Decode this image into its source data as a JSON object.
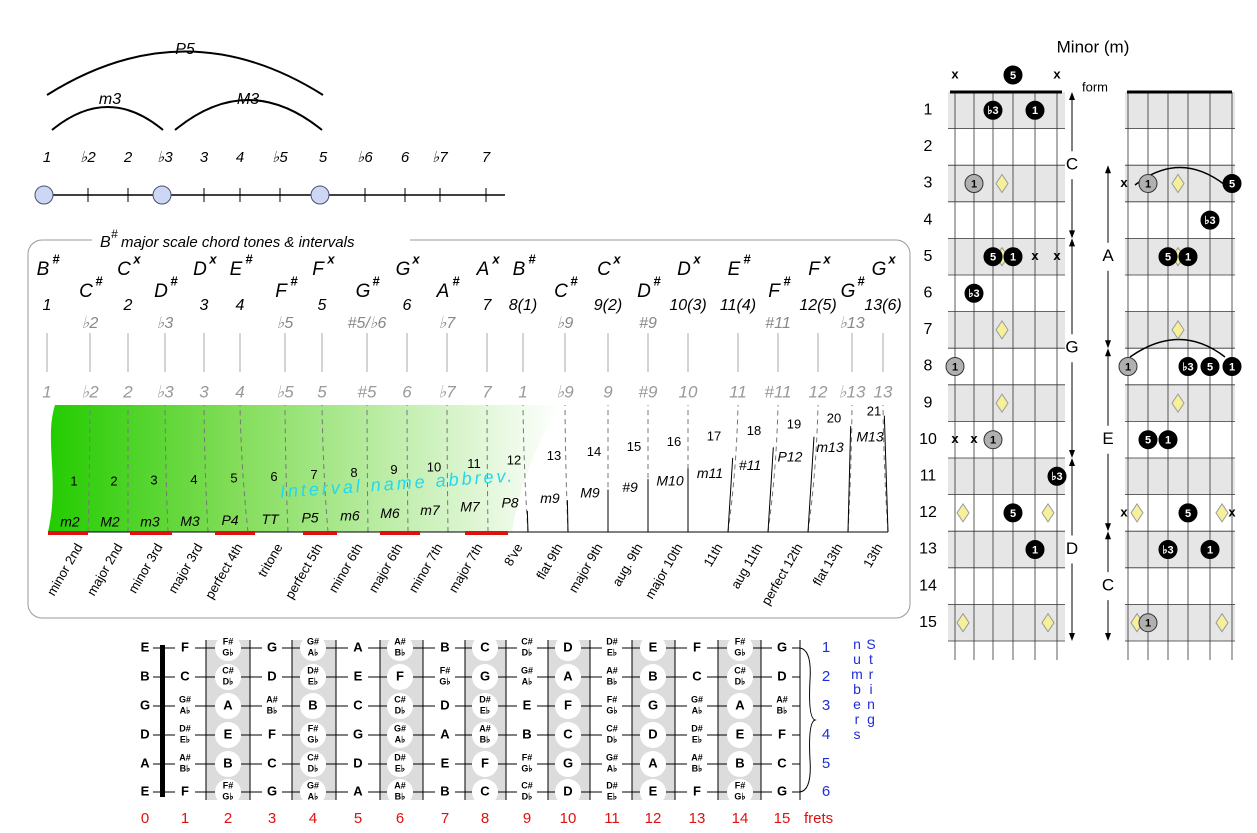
{
  "top_intervals": {
    "arcs": [
      "P5",
      "m3",
      "M3"
    ],
    "degrees": [
      "1",
      "♭2",
      "2",
      "♭3",
      "3",
      "4",
      "♭5",
      "5",
      "♭6",
      "6",
      "♭7",
      "7"
    ]
  },
  "scale_box": {
    "title": {
      "note": "B",
      "accidental": "#",
      "text": "major scale chord tones & intervals"
    },
    "columns": [
      {
        "note": "B",
        "accidental": "#",
        "degree": "1",
        "color": "#000000"
      },
      {
        "note": "C",
        "accidental": "#",
        "degree": "♭2",
        "color": "#888888"
      },
      {
        "note": "C",
        "accidental": "x",
        "degree": "2",
        "color": "#000000"
      },
      {
        "note": "D",
        "accidental": "#",
        "degree": "♭3",
        "color": "#888888"
      },
      {
        "note": "D",
        "accidental": "x",
        "degree": "3",
        "color": "#000000"
      },
      {
        "note": "E",
        "accidental": "#",
        "degree": "4",
        "color": "#000000"
      },
      {
        "note": "F",
        "accidental": "#",
        "degree": "♭5",
        "color": "#888888"
      },
      {
        "note": "F",
        "accidental": "x",
        "degree": "5",
        "color": "#000000"
      },
      {
        "note": "G",
        "accidental": "#",
        "degree": "#5/♭6",
        "color": "#888888"
      },
      {
        "note": "G",
        "accidental": "x",
        "degree": "6",
        "color": "#000000"
      },
      {
        "note": "A",
        "accidental": "#",
        "degree": "♭7",
        "color": "#888888"
      },
      {
        "note": "A",
        "accidental": "x",
        "degree": "7",
        "color": "#000000"
      },
      {
        "note": "B",
        "accidental": "#",
        "degree": "8(1)",
        "color": "#000000"
      },
      {
        "note": "C",
        "accidental": "#",
        "degree": "♭9",
        "color": "#888888"
      },
      {
        "note": "C",
        "accidental": "x",
        "degree": "9(2)",
        "color": "#000000"
      },
      {
        "note": "D",
        "accidental": "#",
        "degree": "#9",
        "color": "#888888"
      },
      {
        "note": "D",
        "accidental": "x",
        "degree": "10(3)",
        "color": "#000000"
      },
      {
        "note": "E",
        "accidental": "#",
        "degree": "11(4)",
        "color": "#000000"
      },
      {
        "note": "F",
        "accidental": "#",
        "degree": "#11",
        "color": "#888888"
      },
      {
        "note": "F",
        "accidental": "x",
        "degree": "12(5)",
        "color": "#000000"
      },
      {
        "note": "G",
        "accidental": "#",
        "degree": "♭13",
        "color": "#888888"
      },
      {
        "note": "G",
        "accidental": "x",
        "degree": "13(6)",
        "color": "#000000"
      }
    ],
    "degrees_row": [
      "1",
      "♭2",
      "2",
      "♭3",
      "3",
      "4",
      "♭5",
      "5",
      "#5",
      "6",
      "♭7",
      "7",
      "1",
      "♭9",
      "9",
      "#9",
      "10",
      "11",
      "#11",
      "12",
      "♭13",
      "13"
    ],
    "interval_caption": "Interval name abbrev.",
    "intervals": [
      {
        "number": 1,
        "abbrev": "m2",
        "name": "minor 2nd"
      },
      {
        "number": 2,
        "abbrev": "M2",
        "name": "major 2nd"
      },
      {
        "number": 3,
        "abbrev": "m3",
        "name": "minor 3rd"
      },
      {
        "number": 4,
        "abbrev": "M3",
        "name": "major 3rd"
      },
      {
        "number": 5,
        "abbrev": "P4",
        "name": "perfect 4th"
      },
      {
        "number": 6,
        "abbrev": "TT",
        "name": "tritone"
      },
      {
        "number": 7,
        "abbrev": "P5",
        "name": "perfect 5th"
      },
      {
        "number": 8,
        "abbrev": "m6",
        "name": "minor 6th"
      },
      {
        "number": 9,
        "abbrev": "M6",
        "name": "major 6th"
      },
      {
        "number": 10,
        "abbrev": "m7",
        "name": "minor 7th"
      },
      {
        "number": 11,
        "abbrev": "M7",
        "name": "major 7th"
      },
      {
        "number": 12,
        "abbrev": "P8",
        "name": "8've"
      },
      {
        "number": 13,
        "abbrev": "m9",
        "name": "flat 9th"
      },
      {
        "number": 14,
        "abbrev": "M9",
        "name": "major 9th"
      },
      {
        "number": 15,
        "abbrev": "#9",
        "name": "aug. 9th"
      },
      {
        "number": 16,
        "abbrev": "M10",
        "name": "major 10th"
      },
      {
        "number": 17,
        "abbrev": "m11",
        "name": "11th"
      },
      {
        "number": 18,
        "abbrev": "#11",
        "name": "aug 11th"
      },
      {
        "number": 19,
        "abbrev": "P12",
        "name": "perfect 12th"
      },
      {
        "number": 20,
        "abbrev": "m13",
        "name": "flat 13th"
      },
      {
        "number": 21,
        "abbrev": "M13",
        "name": "13th"
      }
    ]
  },
  "fretboard": {
    "string_names": [
      "E",
      "B",
      "G",
      "D",
      "A",
      "E"
    ],
    "notes": [
      [
        "F",
        [
          "F#",
          "G♭"
        ],
        "G",
        [
          "G#",
          "A♭"
        ],
        "A",
        [
          "A#",
          "B♭"
        ],
        "B",
        "C",
        [
          "C#",
          "D♭"
        ],
        "D",
        [
          "D#",
          "E♭"
        ],
        "E",
        "F",
        [
          "F#",
          "G♭"
        ],
        "G"
      ],
      [
        "C",
        [
          "C#",
          "D♭"
        ],
        "D",
        [
          "D#",
          "E♭"
        ],
        "E",
        "F",
        [
          "F#",
          "G♭"
        ],
        "G",
        [
          "G#",
          "A♭"
        ],
        "A",
        [
          "A#",
          "B♭"
        ],
        "B",
        "C",
        [
          "C#",
          "D♭"
        ],
        "D"
      ],
      [
        [
          "G#",
          "A♭"
        ],
        "A",
        [
          "A#",
          "B♭"
        ],
        "B",
        "C",
        [
          "C#",
          "D♭"
        ],
        "D",
        [
          "D#",
          "E♭"
        ],
        "E",
        "F",
        [
          "F#",
          "G♭"
        ],
        "G",
        [
          "G#",
          "A♭"
        ],
        "A",
        [
          "A#",
          "B♭"
        ]
      ],
      [
        [
          "D#",
          "E♭"
        ],
        "E",
        "F",
        [
          "F#",
          "G♭"
        ],
        "G",
        [
          "G#",
          "A♭"
        ],
        "A",
        [
          "A#",
          "B♭"
        ],
        "B",
        "C",
        [
          "C#",
          "D♭"
        ],
        "D",
        [
          "D#",
          "E♭"
        ],
        "E",
        "F"
      ],
      [
        [
          "A#",
          "B♭"
        ],
        "B",
        "C",
        [
          "C#",
          "D♭"
        ],
        "D",
        [
          "D#",
          "E♭"
        ],
        "E",
        "F",
        [
          "F#",
          "G♭"
        ],
        "G",
        [
          "G#",
          "A♭"
        ],
        "A",
        [
          "A#",
          "B♭"
        ],
        "B",
        "C"
      ],
      [
        "F",
        [
          "F#",
          "G♭"
        ],
        "G",
        [
          "G#",
          "A♭"
        ],
        "A",
        [
          "A#",
          "B♭"
        ],
        "B",
        "C",
        [
          "C#",
          "D♭"
        ],
        "D",
        [
          "D#",
          "E♭"
        ],
        "E",
        "F",
        [
          "F#",
          "G♭"
        ],
        "G"
      ]
    ],
    "string_numbers": [
      1,
      2,
      3,
      4,
      5,
      6
    ],
    "string_numbers_label": "String numbers",
    "fret_numbers": [
      0,
      1,
      2,
      3,
      4,
      5,
      6,
      7,
      8,
      9,
      10,
      11,
      12,
      13,
      14,
      15
    ],
    "frets_label": "frets"
  },
  "minor_chart": {
    "title": "Minor (m)",
    "form_label": "form",
    "fret_numbers": [
      1,
      2,
      3,
      4,
      5,
      6,
      7,
      8,
      9,
      10,
      11,
      12,
      13,
      14,
      15
    ],
    "left": {
      "forms": [
        "C",
        "G",
        "D"
      ],
      "dots": [
        {
          "fret": 0,
          "col": 0,
          "label": "x",
          "style": "x"
        },
        {
          "fret": 0,
          "col": 3,
          "label": "5",
          "style": "black"
        },
        {
          "fret": 0,
          "col": 5,
          "label": "x",
          "style": "x"
        },
        {
          "fret": 1,
          "col": 2,
          "label": "♭3",
          "style": "black"
        },
        {
          "fret": 1,
          "col": 4,
          "label": "1",
          "style": "black"
        },
        {
          "fret": 3,
          "col": 1,
          "label": "1",
          "style": "gray"
        },
        {
          "fret": 5,
          "col": 2,
          "label": "5",
          "style": "black"
        },
        {
          "fret": 5,
          "col": 3,
          "label": "1",
          "style": "black"
        },
        {
          "fret": 5,
          "col": 4,
          "label": "x",
          "style": "x"
        },
        {
          "fret": 5,
          "col": 5,
          "label": "x",
          "style": "x"
        },
        {
          "fret": 6,
          "col": 1,
          "label": "♭3",
          "style": "black"
        },
        {
          "fret": 8,
          "col": 0,
          "label": "1",
          "style": "gray"
        },
        {
          "fret": 10,
          "col": 0,
          "label": "x",
          "style": "x"
        },
        {
          "fret": 10,
          "col": 1,
          "label": "x",
          "style": "x"
        },
        {
          "fret": 10,
          "col": 2,
          "label": "1",
          "style": "gray"
        },
        {
          "fret": 11,
          "col": 5,
          "label": "♭3",
          "style": "black"
        },
        {
          "fret": 12,
          "col": 3,
          "label": "5",
          "style": "black"
        },
        {
          "fret": 13,
          "col": 4,
          "label": "1",
          "style": "black"
        }
      ]
    },
    "right": {
      "forms": [
        "A",
        "E",
        "C"
      ],
      "dots": [
        {
          "fret": 3,
          "col": 0,
          "label": "x",
          "style": "x"
        },
        {
          "fret": 3,
          "col": 1,
          "label": "1",
          "style": "gray"
        },
        {
          "fret": 3,
          "col": 5,
          "label": "5",
          "style": "black"
        },
        {
          "fret": 4,
          "col": 4,
          "label": "♭3",
          "style": "black"
        },
        {
          "fret": 5,
          "col": 2,
          "label": "5",
          "style": "black"
        },
        {
          "fret": 5,
          "col": 3,
          "label": "1",
          "style": "black"
        },
        {
          "fret": 8,
          "col": 0,
          "label": "1",
          "style": "gray"
        },
        {
          "fret": 8,
          "col": 3,
          "label": "♭3",
          "style": "black"
        },
        {
          "fret": 8,
          "col": 4,
          "label": "5",
          "style": "black"
        },
        {
          "fret": 8,
          "col": 5,
          "label": "1",
          "style": "black"
        },
        {
          "fret": 10,
          "col": 1,
          "label": "5",
          "style": "black"
        },
        {
          "fret": 10,
          "col": 2,
          "label": "1",
          "style": "black"
        },
        {
          "fret": 12,
          "col": 0,
          "label": "x",
          "style": "x"
        },
        {
          "fret": 12,
          "col": 3,
          "label": "5",
          "style": "black"
        },
        {
          "fret": 12,
          "col": 5,
          "label": "x",
          "style": "x"
        },
        {
          "fret": 13,
          "col": 2,
          "label": "♭3",
          "style": "black"
        },
        {
          "fret": 13,
          "col": 4,
          "label": "1",
          "style": "black"
        },
        {
          "fret": 15,
          "col": 1,
          "label": "1",
          "style": "gray"
        }
      ]
    }
  }
}
